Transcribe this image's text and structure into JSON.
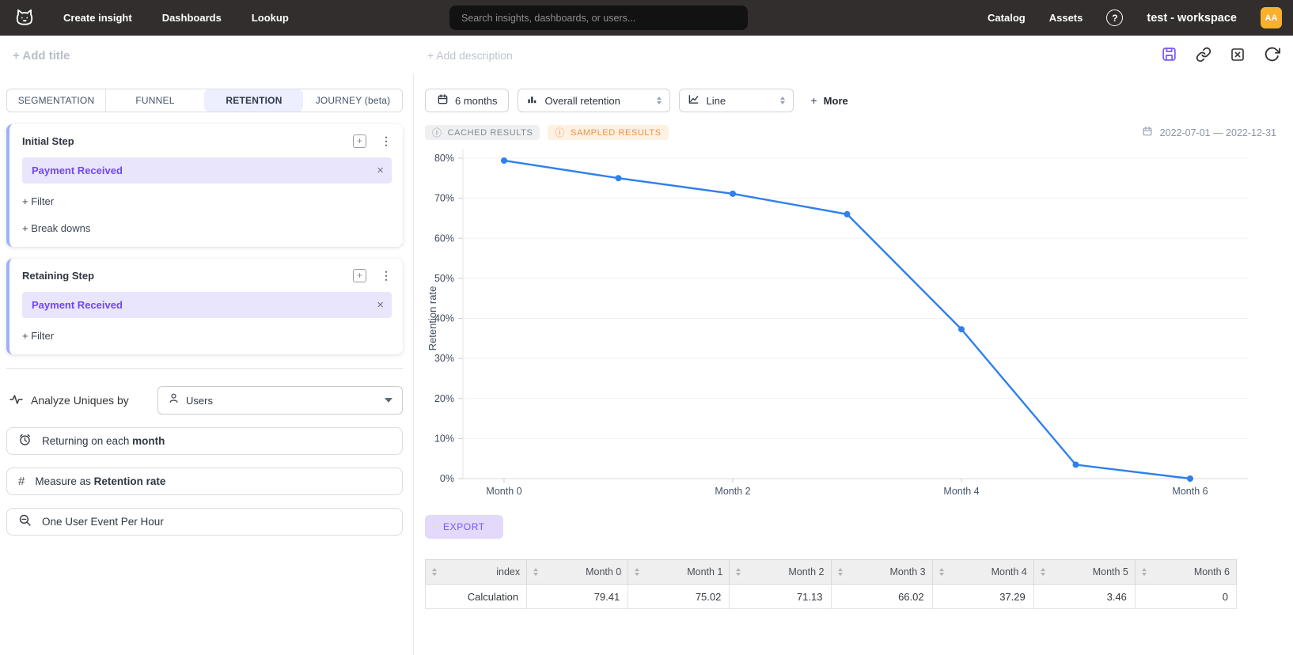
{
  "nav": {
    "items": [
      "Create insight",
      "Dashboards",
      "Lookup"
    ],
    "search_placeholder": "Search insights, dashboards, or users...",
    "right_items": [
      "Catalog",
      "Assets"
    ],
    "help_glyph": "?",
    "workspace": "test - workspace",
    "avatar_initials": "AA",
    "avatar_color": "#f9b02b"
  },
  "titlebar": {
    "add_title": "+ Add title",
    "add_description": "+ Add description"
  },
  "tabs": [
    {
      "label": "SEGMENTATION",
      "active": false
    },
    {
      "label": "FUNNEL",
      "active": false
    },
    {
      "label": "RETENTION",
      "active": true
    },
    {
      "label": "JOURNEY (beta)",
      "active": false
    }
  ],
  "steps": {
    "initial": {
      "title": "Initial Step",
      "event": "Payment Received",
      "filter": "+ Filter",
      "breakdown": "+ Break downs"
    },
    "retaining": {
      "title": "Retaining Step",
      "event": "Payment Received",
      "filter": "+ Filter"
    }
  },
  "analyze": {
    "label": "Analyze Uniques by",
    "value": "Users"
  },
  "options": [
    {
      "prefix": "Returning on each ",
      "bold": "month"
    },
    {
      "prefix": "Measure as ",
      "bold": "Retention rate"
    },
    {
      "prefix": "One User Event Per Hour",
      "bold": ""
    }
  ],
  "controls": {
    "range": "6 months",
    "retention_type": "Overall retention",
    "chart_type": "Line",
    "more_plus": "+",
    "more_label": "More"
  },
  "status": {
    "cached": "CACHED RESULTS",
    "sampled": "SAMPLED RESULTS",
    "info_glyph": "ⓘ",
    "period": "2022-07-01 — 2022-12-31"
  },
  "export_label": "EXPORT",
  "chart_data": {
    "type": "line",
    "x_categories": [
      "Month 0",
      "Month 1",
      "Month 2",
      "Month 3",
      "Month 4",
      "Month 5",
      "Month 6"
    ],
    "series": [
      {
        "name": "Overall retention",
        "values": [
          79.41,
          75.02,
          71.13,
          66.02,
          37.29,
          3.46,
          0
        ]
      }
    ],
    "title": "",
    "xlabel": "",
    "ylabel": "Retention rate",
    "ylim": [
      0,
      84
    ],
    "yticks": [
      0,
      10,
      20,
      30,
      40,
      50,
      60,
      70,
      80
    ],
    "ytick_suffix": "%",
    "xticks_shown": [
      0,
      2,
      4,
      6
    ],
    "grid": true,
    "legend": false,
    "line_color": "#2f80ed",
    "accent_purple": "#7856ff"
  },
  "table": {
    "columns": [
      "index",
      "Month 0",
      "Month 1",
      "Month 2",
      "Month 3",
      "Month 4",
      "Month 5",
      "Month 6"
    ],
    "rows": [
      [
        "Calculation",
        "79.41",
        "75.02",
        "71.13",
        "66.02",
        "37.29",
        "3.46",
        "0"
      ]
    ]
  },
  "glyphs": {
    "kebab": "⋮",
    "close": "×",
    "plus": "+"
  }
}
